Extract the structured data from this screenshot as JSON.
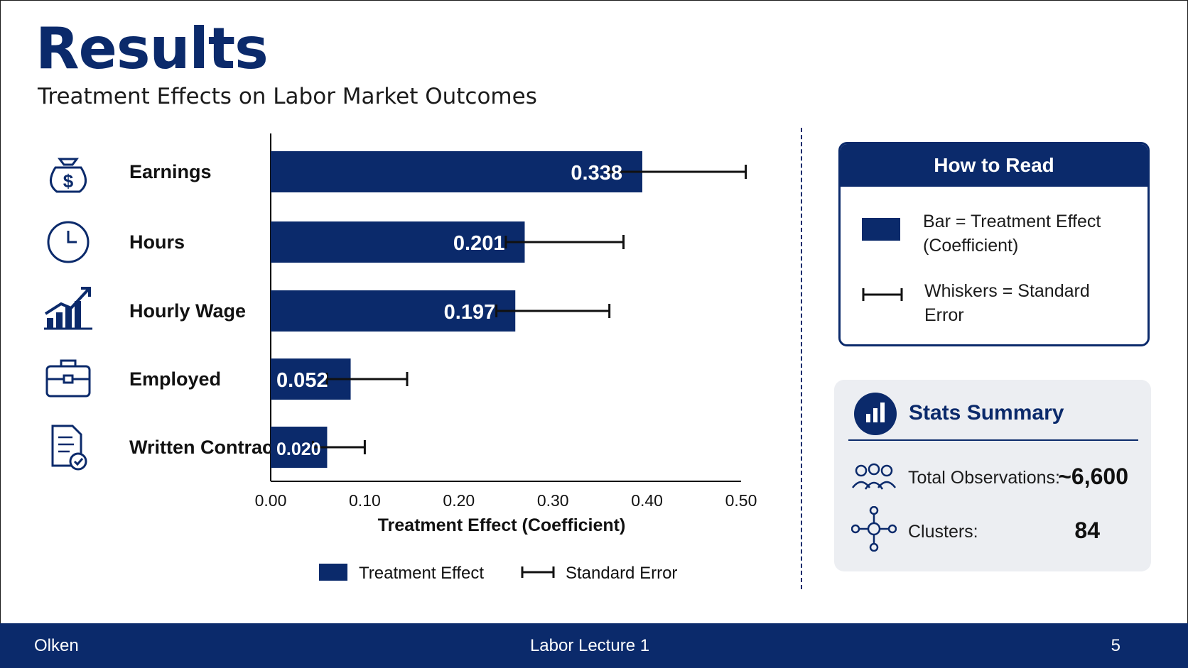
{
  "slide": {
    "title": "Results",
    "subtitle": "Treatment Effects on Labor Market Outcomes"
  },
  "chart_data": {
    "type": "bar",
    "orientation": "horizontal",
    "categories": [
      "Earnings",
      "Hours",
      "Hourly Wage",
      "Employed",
      "Written Contract"
    ],
    "category_icons": [
      "money-bag-icon",
      "clock-icon",
      "growth-chart-icon",
      "briefcase-icon",
      "contract-icon"
    ],
    "series": [
      {
        "name": "Treatment Effect",
        "values": [
          0.338,
          0.201,
          0.197,
          0.052,
          0.02
        ],
        "value_labels": [
          "0.338",
          "0.201",
          "0.197",
          "0.052",
          "0.020"
        ],
        "color": "#0b2a6b"
      }
    ],
    "error_bars": {
      "name": "Standard Error",
      "ranges": [
        [
          0.375,
          0.505
        ],
        [
          0.265,
          0.375
        ],
        [
          0.255,
          0.36
        ],
        [
          0.075,
          0.145
        ],
        [
          0.06,
          0.1
        ]
      ]
    },
    "xlabel": "Treatment Effect (Coefficient)",
    "xlim": [
      0.0,
      0.5
    ],
    "xticks": [
      "0.00",
      "0.10",
      "0.20",
      "0.30",
      "0.40",
      "0.50"
    ],
    "bar_scale_note_values": [
      0.395,
      0.27,
      0.26,
      0.085,
      0.06
    ],
    "grid": false,
    "legend": {
      "position": "bottom",
      "items": [
        "Treatment Effect",
        "Standard Error"
      ]
    }
  },
  "how_to_read": {
    "title": "How to Read",
    "bar_text": "Bar = Treatment Effect (Coefficient)",
    "whisker_text": "Whiskers = Standard Error"
  },
  "stats": {
    "title": "Stats Summary",
    "rows": [
      {
        "label": "Total Observations:",
        "value": "~6,600",
        "icon": "people-icon"
      },
      {
        "label": "Clusters:",
        "value": "84",
        "icon": "network-icon"
      }
    ]
  },
  "footer": {
    "author": "Olken",
    "lecture": "Labor Lecture 1",
    "page": "5"
  },
  "colors": {
    "navy": "#0b2a6b",
    "panel_gray": "#eceef2"
  }
}
